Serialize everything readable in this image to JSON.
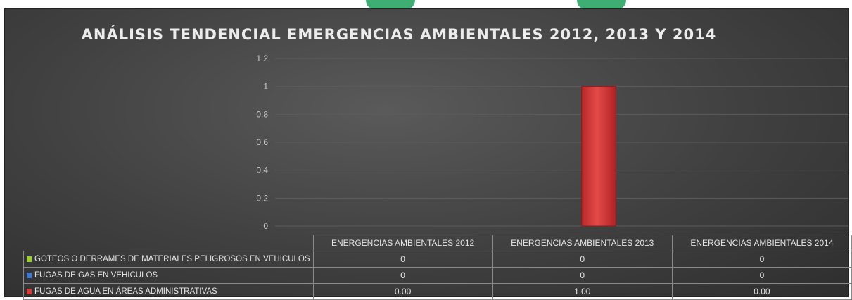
{
  "chart_data": {
    "type": "bar",
    "title": "ANÁLISIS TENDENCIAL EMERGENCIAS AMBIENTALES 2012, 2013 Y 2014",
    "categories": [
      "ENERGENCIAS AMBIENTALES 2012",
      "ENERGENCIAS AMBIENTALES 2013",
      "ENERGENCIAS AMBIENTALES 2014"
    ],
    "ylim": [
      0,
      1.2
    ],
    "yticks": [
      "0",
      "0.2",
      "0.4",
      "0.6",
      "0.8",
      "1",
      "1.2"
    ],
    "grid": true,
    "legend": "data-table",
    "series": [
      {
        "name": "GOTEOS O DERRAMES DE MATERIALES PELIGROSOS EN VEHICULOS",
        "color": "#9bd12e",
        "values": [
          0,
          0,
          0
        ],
        "labels": [
          "0",
          "0",
          "0"
        ]
      },
      {
        "name": "FUGAS DE GAS EN VEHICULOS",
        "color": "#3b78d8",
        "values": [
          0,
          0,
          0
        ],
        "labels": [
          "0",
          "0",
          "0"
        ]
      },
      {
        "name": "FUGAS DE AGUA EN ÁREAS ADMINISTRATIVAS",
        "color": "#d83a3a",
        "values": [
          0,
          1,
          0
        ],
        "labels": [
          "0.00",
          "1.00",
          "0.00"
        ]
      }
    ]
  }
}
